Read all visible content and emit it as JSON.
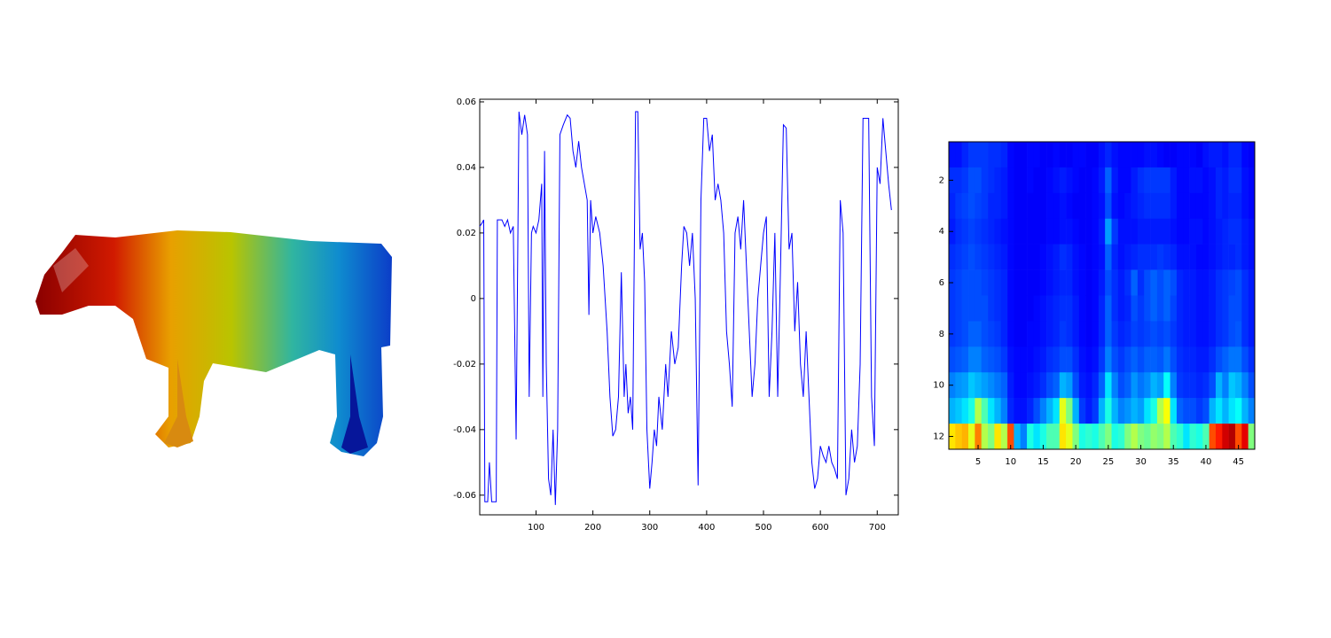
{
  "chart_data": [
    {
      "type": "line",
      "color": "#0000ff",
      "xlim": [
        1,
        737
      ],
      "ylim": [
        -0.066,
        0.0608
      ],
      "xticks": [
        100,
        200,
        300,
        400,
        500,
        600,
        700
      ],
      "yticks": [
        -0.06,
        -0.04,
        -0.02,
        0,
        0.02,
        0.04,
        0.06
      ],
      "x": [
        1,
        5,
        8,
        10,
        15,
        18,
        22,
        30,
        32,
        40,
        45,
        50,
        55,
        60,
        65,
        70,
        75,
        80,
        85,
        88,
        92,
        95,
        100,
        105,
        110,
        112,
        115,
        118,
        122,
        126,
        130,
        134,
        138,
        142,
        148,
        155,
        160,
        165,
        170,
        175,
        180,
        185,
        190,
        193,
        196,
        200,
        205,
        212,
        218,
        225,
        230,
        235,
        240,
        245,
        250,
        255,
        258,
        262,
        266,
        270,
        275,
        279,
        283,
        287,
        291,
        295,
        300,
        304,
        308,
        312,
        316,
        322,
        328,
        332,
        338,
        344,
        350,
        356,
        360,
        365,
        370,
        375,
        380,
        385,
        390,
        395,
        400,
        405,
        410,
        415,
        420,
        425,
        430,
        435,
        440,
        445,
        450,
        455,
        460,
        465,
        470,
        475,
        480,
        485,
        490,
        495,
        500,
        505,
        510,
        515,
        520,
        525,
        530,
        535,
        540,
        545,
        550,
        555,
        560,
        565,
        570,
        575,
        580,
        585,
        590,
        595,
        600,
        605,
        610,
        615,
        620,
        625,
        630,
        635,
        640,
        645,
        650,
        655,
        660,
        665,
        670,
        675,
        680,
        685,
        690,
        695,
        700,
        705,
        710,
        715,
        720,
        725
      ],
      "values": [
        0.022,
        0.023,
        0.024,
        -0.062,
        -0.062,
        -0.05,
        -0.062,
        -0.062,
        0.024,
        0.024,
        0.022,
        0.024,
        0.02,
        0.022,
        -0.043,
        0.057,
        0.05,
        0.056,
        0.05,
        -0.03,
        0.02,
        0.022,
        0.02,
        0.024,
        0.035,
        -0.03,
        0.045,
        -0.02,
        -0.055,
        -0.06,
        -0.04,
        -0.063,
        -0.04,
        0.05,
        0.053,
        0.056,
        0.055,
        0.045,
        0.04,
        0.048,
        0.04,
        0.035,
        0.03,
        -0.005,
        0.03,
        0.02,
        0.025,
        0.02,
        0.01,
        -0.01,
        -0.03,
        -0.042,
        -0.04,
        -0.03,
        0.008,
        -0.03,
        -0.02,
        -0.035,
        -0.03,
        -0.04,
        0.057,
        0.057,
        0.015,
        0.02,
        0.005,
        -0.04,
        -0.058,
        -0.05,
        -0.04,
        -0.045,
        -0.03,
        -0.04,
        -0.02,
        -0.03,
        -0.01,
        -0.02,
        -0.015,
        0.01,
        0.022,
        0.02,
        0.01,
        0.02,
        0.0,
        -0.057,
        0.03,
        0.055,
        0.055,
        0.045,
        0.05,
        0.03,
        0.035,
        0.03,
        0.02,
        -0.01,
        -0.02,
        -0.033,
        0.02,
        0.025,
        0.015,
        0.03,
        0.01,
        -0.01,
        -0.03,
        -0.02,
        0.0,
        0.01,
        0.02,
        0.025,
        -0.03,
        -0.01,
        0.02,
        -0.03,
        0.01,
        0.053,
        0.052,
        0.015,
        0.02,
        -0.01,
        0.005,
        -0.02,
        -0.03,
        -0.01,
        -0.03,
        -0.05,
        -0.058,
        -0.055,
        -0.045,
        -0.048,
        -0.05,
        -0.045,
        -0.05,
        -0.052,
        -0.055,
        0.03,
        0.02,
        -0.06,
        -0.055,
        -0.04,
        -0.05,
        -0.045,
        -0.02,
        0.055,
        0.055,
        0.055,
        -0.03,
        -0.045,
        0.04,
        0.035,
        0.055,
        0.045,
        0.035,
        0.027
      ]
    },
    {
      "type": "heatmap",
      "colormap": "jet",
      "clim": [
        0,
        1
      ],
      "xlim": [
        0.5,
        47.5
      ],
      "ylim": [
        0.5,
        12.5
      ],
      "xticks": [
        5,
        10,
        15,
        20,
        25,
        30,
        35,
        40,
        45
      ],
      "yticks": [
        2,
        4,
        6,
        8,
        10,
        12
      ],
      "values": [
        [
          0.14,
          0.14,
          0.16,
          0.18,
          0.18,
          0.18,
          0.17,
          0.17,
          0.16,
          0.13,
          0.12,
          0.12,
          0.13,
          0.13,
          0.12,
          0.12,
          0.13,
          0.12,
          0.12,
          0.13,
          0.13,
          0.12,
          0.12,
          0.14,
          0.16,
          0.14,
          0.13,
          0.13,
          0.13,
          0.13,
          0.14,
          0.14,
          0.13,
          0.12,
          0.12,
          0.13,
          0.13,
          0.13,
          0.12,
          0.14,
          0.15,
          0.15,
          0.14,
          0.16,
          0.16,
          0.13,
          0.12
        ],
        [
          0.17,
          0.17,
          0.18,
          0.2,
          0.2,
          0.18,
          0.17,
          0.16,
          0.15,
          0.13,
          0.12,
          0.12,
          0.13,
          0.12,
          0.12,
          0.13,
          0.14,
          0.15,
          0.14,
          0.13,
          0.12,
          0.12,
          0.13,
          0.15,
          0.22,
          0.15,
          0.13,
          0.13,
          0.15,
          0.17,
          0.18,
          0.18,
          0.18,
          0.18,
          0.15,
          0.13,
          0.13,
          0.14,
          0.14,
          0.13,
          0.14,
          0.16,
          0.15,
          0.17,
          0.17,
          0.14,
          0.13
        ],
        [
          0.16,
          0.18,
          0.19,
          0.2,
          0.19,
          0.18,
          0.16,
          0.16,
          0.15,
          0.13,
          0.12,
          0.12,
          0.12,
          0.12,
          0.12,
          0.13,
          0.13,
          0.14,
          0.13,
          0.12,
          0.12,
          0.12,
          0.13,
          0.14,
          0.2,
          0.14,
          0.13,
          0.14,
          0.15,
          0.16,
          0.17,
          0.17,
          0.17,
          0.17,
          0.15,
          0.13,
          0.13,
          0.13,
          0.13,
          0.13,
          0.14,
          0.16,
          0.15,
          0.16,
          0.16,
          0.14,
          0.13
        ],
        [
          0.15,
          0.17,
          0.18,
          0.19,
          0.18,
          0.17,
          0.16,
          0.15,
          0.14,
          0.13,
          0.12,
          0.12,
          0.12,
          0.12,
          0.12,
          0.13,
          0.13,
          0.14,
          0.14,
          0.13,
          0.12,
          0.12,
          0.13,
          0.15,
          0.28,
          0.18,
          0.14,
          0.14,
          0.14,
          0.15,
          0.15,
          0.15,
          0.15,
          0.15,
          0.14,
          0.13,
          0.13,
          0.14,
          0.14,
          0.13,
          0.14,
          0.15,
          0.16,
          0.17,
          0.17,
          0.15,
          0.14
        ],
        [
          0.17,
          0.18,
          0.19,
          0.2,
          0.19,
          0.18,
          0.17,
          0.16,
          0.15,
          0.13,
          0.12,
          0.12,
          0.12,
          0.12,
          0.13,
          0.14,
          0.15,
          0.17,
          0.16,
          0.14,
          0.13,
          0.12,
          0.13,
          0.14,
          0.22,
          0.16,
          0.14,
          0.15,
          0.16,
          0.17,
          0.17,
          0.17,
          0.18,
          0.17,
          0.16,
          0.14,
          0.14,
          0.14,
          0.13,
          0.13,
          0.14,
          0.15,
          0.16,
          0.16,
          0.17,
          0.15,
          0.14
        ],
        [
          0.18,
          0.19,
          0.2,
          0.2,
          0.2,
          0.19,
          0.18,
          0.17,
          0.16,
          0.13,
          0.12,
          0.12,
          0.12,
          0.12,
          0.13,
          0.14,
          0.15,
          0.16,
          0.16,
          0.14,
          0.13,
          0.12,
          0.13,
          0.15,
          0.2,
          0.17,
          0.15,
          0.17,
          0.22,
          0.17,
          0.2,
          0.22,
          0.2,
          0.22,
          0.2,
          0.16,
          0.15,
          0.15,
          0.14,
          0.14,
          0.15,
          0.17,
          0.18,
          0.19,
          0.2,
          0.17,
          0.15
        ],
        [
          0.18,
          0.19,
          0.2,
          0.2,
          0.2,
          0.2,
          0.18,
          0.17,
          0.16,
          0.13,
          0.12,
          0.12,
          0.12,
          0.13,
          0.14,
          0.15,
          0.16,
          0.17,
          0.17,
          0.15,
          0.13,
          0.12,
          0.13,
          0.16,
          0.22,
          0.17,
          0.15,
          0.16,
          0.2,
          0.18,
          0.2,
          0.22,
          0.2,
          0.22,
          0.19,
          0.16,
          0.15,
          0.15,
          0.14,
          0.14,
          0.15,
          0.17,
          0.18,
          0.2,
          0.2,
          0.17,
          0.15
        ],
        [
          0.18,
          0.19,
          0.2,
          0.22,
          0.22,
          0.2,
          0.19,
          0.18,
          0.16,
          0.13,
          0.12,
          0.12,
          0.13,
          0.13,
          0.14,
          0.15,
          0.16,
          0.18,
          0.17,
          0.15,
          0.13,
          0.12,
          0.13,
          0.16,
          0.22,
          0.18,
          0.16,
          0.17,
          0.19,
          0.18,
          0.19,
          0.2,
          0.19,
          0.2,
          0.18,
          0.16,
          0.15,
          0.15,
          0.14,
          0.14,
          0.15,
          0.17,
          0.18,
          0.2,
          0.21,
          0.17,
          0.15
        ],
        [
          0.2,
          0.21,
          0.22,
          0.25,
          0.25,
          0.22,
          0.21,
          0.2,
          0.18,
          0.14,
          0.13,
          0.13,
          0.13,
          0.14,
          0.15,
          0.17,
          0.18,
          0.2,
          0.2,
          0.17,
          0.14,
          0.13,
          0.14,
          0.18,
          0.25,
          0.2,
          0.18,
          0.2,
          0.22,
          0.2,
          0.22,
          0.22,
          0.21,
          0.24,
          0.2,
          0.17,
          0.16,
          0.16,
          0.15,
          0.15,
          0.17,
          0.2,
          0.22,
          0.24,
          0.24,
          0.2,
          0.17
        ],
        [
          0.25,
          0.27,
          0.28,
          0.32,
          0.3,
          0.28,
          0.26,
          0.24,
          0.22,
          0.15,
          0.13,
          0.13,
          0.14,
          0.15,
          0.17,
          0.2,
          0.22,
          0.3,
          0.28,
          0.2,
          0.15,
          0.14,
          0.16,
          0.22,
          0.35,
          0.25,
          0.2,
          0.22,
          0.27,
          0.24,
          0.26,
          0.3,
          0.28,
          0.38,
          0.25,
          0.18,
          0.17,
          0.17,
          0.16,
          0.17,
          0.2,
          0.3,
          0.25,
          0.32,
          0.3,
          0.25,
          0.2
        ],
        [
          0.3,
          0.32,
          0.35,
          0.4,
          0.55,
          0.45,
          0.35,
          0.3,
          0.25,
          0.16,
          0.14,
          0.14,
          0.16,
          0.2,
          0.25,
          0.3,
          0.35,
          0.6,
          0.5,
          0.3,
          0.18,
          0.15,
          0.18,
          0.3,
          0.4,
          0.3,
          0.25,
          0.27,
          0.3,
          0.28,
          0.35,
          0.4,
          0.55,
          0.62,
          0.35,
          0.22,
          0.2,
          0.2,
          0.18,
          0.2,
          0.3,
          0.35,
          0.3,
          0.35,
          0.38,
          0.3,
          0.25
        ],
        [
          0.65,
          0.68,
          0.7,
          0.6,
          0.75,
          0.55,
          0.5,
          0.65,
          0.55,
          0.8,
          0.3,
          0.25,
          0.4,
          0.35,
          0.4,
          0.45,
          0.45,
          0.65,
          0.6,
          0.5,
          0.4,
          0.42,
          0.4,
          0.45,
          0.5,
          0.4,
          0.42,
          0.5,
          0.55,
          0.5,
          0.48,
          0.52,
          0.5,
          0.55,
          0.45,
          0.42,
          0.35,
          0.42,
          0.4,
          0.45,
          0.8,
          0.85,
          0.92,
          0.95,
          0.8,
          0.9,
          0.5
        ]
      ]
    }
  ]
}
